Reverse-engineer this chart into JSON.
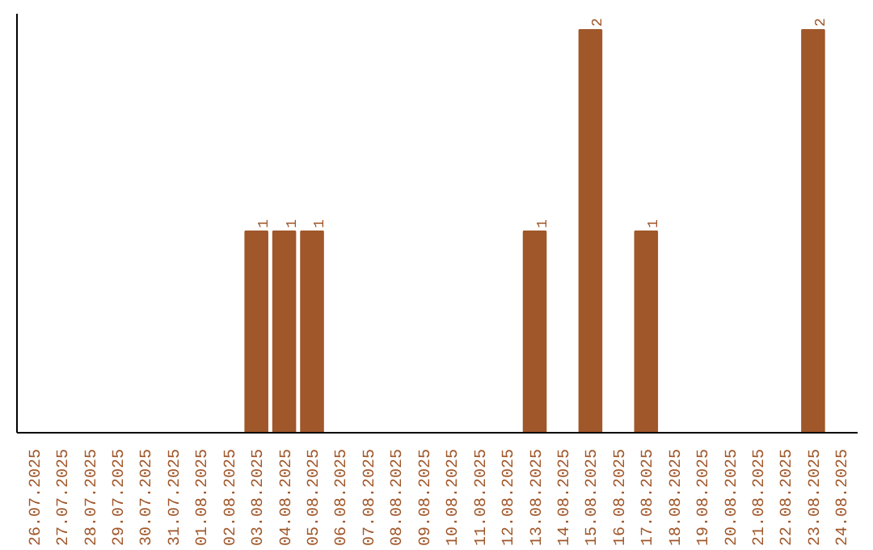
{
  "chart_data": {
    "type": "bar",
    "categories": [
      "26.07.2025",
      "27.07.2025",
      "28.07.2025",
      "29.07.2025",
      "30.07.2025",
      "31.07.2025",
      "01.08.2025",
      "02.08.2025",
      "03.08.2025",
      "04.08.2025",
      "05.08.2025",
      "06.08.2025",
      "07.08.2025",
      "08.08.2025",
      "09.08.2025",
      "10.08.2025",
      "11.08.2025",
      "12.08.2025",
      "13.08.2025",
      "14.08.2025",
      "15.08.2025",
      "16.08.2025",
      "17.08.2025",
      "18.08.2025",
      "19.08.2025",
      "20.08.2025",
      "21.08.2025",
      "22.08.2025",
      "23.08.2025",
      "24.08.2025"
    ],
    "values": [
      0,
      0,
      0,
      0,
      0,
      0,
      0,
      0,
      1,
      1,
      1,
      0,
      0,
      0,
      0,
      0,
      0,
      0,
      1,
      0,
      2,
      0,
      1,
      0,
      0,
      0,
      0,
      0,
      2,
      0
    ],
    "value_labels": [
      null,
      null,
      null,
      null,
      null,
      null,
      null,
      null,
      "1",
      "1",
      "1",
      null,
      null,
      null,
      null,
      null,
      null,
      null,
      "1",
      null,
      "2",
      null,
      "1",
      null,
      null,
      null,
      null,
      null,
      "2",
      null
    ],
    "color": "#a0572a",
    "grid": false,
    "tick_labels": "x"
  }
}
